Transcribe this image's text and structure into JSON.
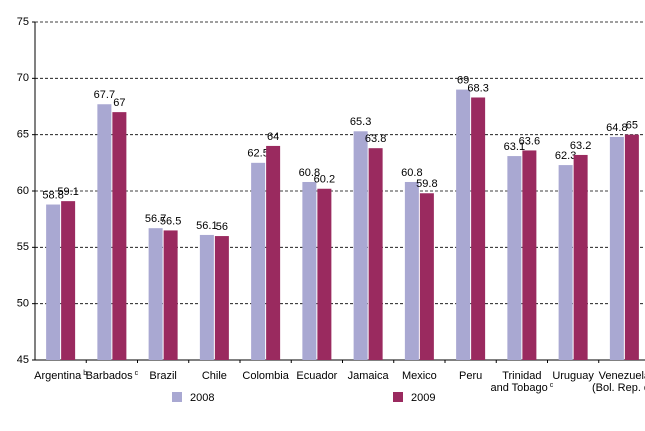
{
  "chart_data": {
    "type": "bar",
    "categories": [
      [
        "Argentina"
      ],
      [
        "Barbados"
      ],
      [
        "Brazil"
      ],
      [
        "Chile"
      ],
      [
        "Colombia"
      ],
      [
        "Ecuador"
      ],
      [
        "Jamaica"
      ],
      [
        "Mexico"
      ],
      [
        "Peru"
      ],
      [
        "Trinidad",
        "and Tobago"
      ],
      [
        "Uruguay"
      ],
      [
        "Venezuela",
        "(Bol. Rep. of)"
      ]
    ],
    "category_notes": [
      "b",
      "c",
      null,
      null,
      null,
      null,
      null,
      null,
      null,
      "c",
      null,
      null
    ],
    "series": [
      {
        "name": "2008",
        "color": "#a9a8d2",
        "values": [
          58.8,
          67.7,
          56.7,
          56.1,
          62.5,
          60.8,
          65.3,
          60.8,
          69,
          63.1,
          62.3,
          64.8
        ]
      },
      {
        "name": "2009",
        "color": "#9a2a5f",
        "values": [
          59.1,
          67,
          56.5,
          56,
          64,
          60.2,
          63.8,
          59.8,
          68.3,
          63.6,
          63.2,
          65
        ]
      }
    ],
    "ylim": [
      45,
      75
    ],
    "yticks": [
      45,
      50,
      55,
      60,
      65,
      70,
      75
    ],
    "grid": true
  }
}
